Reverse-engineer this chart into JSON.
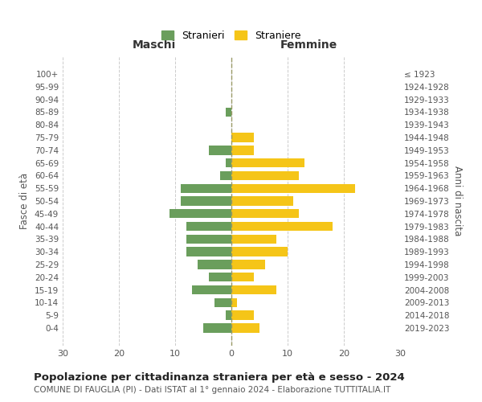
{
  "age_groups": [
    "0-4",
    "5-9",
    "10-14",
    "15-19",
    "20-24",
    "25-29",
    "30-34",
    "35-39",
    "40-44",
    "45-49",
    "50-54",
    "55-59",
    "60-64",
    "65-69",
    "70-74",
    "75-79",
    "80-84",
    "85-89",
    "90-94",
    "95-99",
    "100+"
  ],
  "birth_years": [
    "2019-2023",
    "2014-2018",
    "2009-2013",
    "2004-2008",
    "1999-2003",
    "1994-1998",
    "1989-1993",
    "1984-1988",
    "1979-1983",
    "1974-1978",
    "1969-1973",
    "1964-1968",
    "1959-1963",
    "1954-1958",
    "1949-1953",
    "1944-1948",
    "1939-1943",
    "1934-1938",
    "1929-1933",
    "1924-1928",
    "≤ 1923"
  ],
  "males": [
    5,
    1,
    3,
    7,
    4,
    6,
    8,
    8,
    8,
    11,
    9,
    9,
    2,
    1,
    4,
    0,
    0,
    1,
    0,
    0,
    0
  ],
  "females": [
    5,
    4,
    1,
    8,
    4,
    6,
    10,
    8,
    18,
    12,
    11,
    22,
    12,
    13,
    4,
    4,
    0,
    0,
    0,
    0,
    0
  ],
  "male_color": "#6a9e5c",
  "female_color": "#f5c518",
  "background_color": "#ffffff",
  "grid_color": "#cccccc",
  "title": "Popolazione per cittadinanza straniera per età e sesso - 2024",
  "subtitle": "COMUNE DI FAUGLIA (PI) - Dati ISTAT al 1° gennaio 2024 - Elaborazione TUTTITALIA.IT",
  "xlabel_left": "Maschi",
  "xlabel_right": "Femmine",
  "ylabel_left": "Fasce di età",
  "ylabel_right": "Anni di nascita",
  "legend_male": "Stranieri",
  "legend_female": "Straniere",
  "xlim": 30
}
